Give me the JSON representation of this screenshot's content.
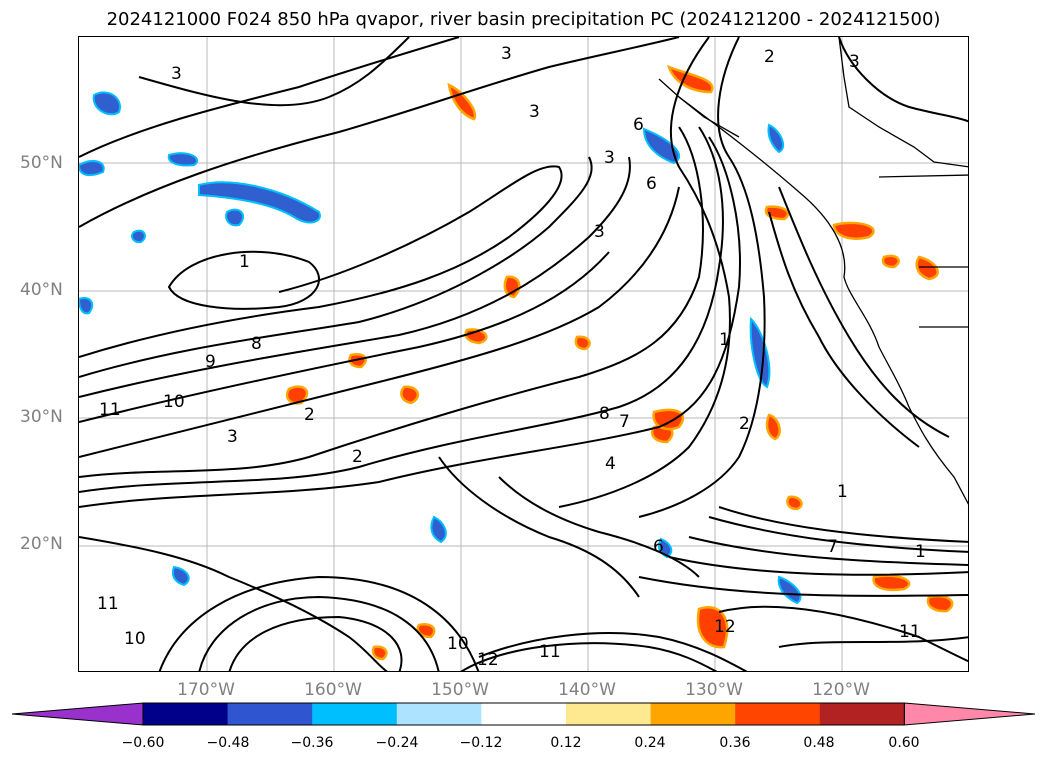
{
  "title": "2024121000 F024 850 hPa qvapor, river basin precipitation PC (2024121200 - 2024121500)",
  "map": {
    "lat_labels": [
      "50°N",
      "40°N",
      "30°N",
      "20°N"
    ],
    "lon_labels": [
      "170°W",
      "160°W",
      "150°W",
      "140°W",
      "130°W",
      "120°W"
    ],
    "contour_labels": [
      "3",
      "3",
      "3",
      "2",
      "3",
      "6",
      "3",
      "6",
      "3",
      "1",
      "1",
      "8",
      "9",
      "10",
      "11",
      "2",
      "3",
      "2",
      "4",
      "7",
      "8",
      "6",
      "1",
      "2",
      "1",
      "7",
      "11",
      "12",
      "11",
      "10",
      "12",
      "10",
      "11"
    ],
    "colors": {
      "negative_fill": "#3060d0",
      "negative_light": "#00bfff",
      "positive_fill": "#ff4000",
      "positive_light": "#ffa500",
      "contour": "#000000",
      "grid": "#b0b0b0"
    }
  },
  "colorbar": {
    "colors": [
      "#9932cc",
      "#00008b",
      "#3055d0",
      "#00bfff",
      "#aee3ff",
      "#ffffff",
      "#ffe990",
      "#ffa500",
      "#ff4500",
      "#b22222",
      "#ff88aa"
    ],
    "ticks": [
      "−0.60",
      "−0.48",
      "−0.36",
      "−0.24",
      "−0.12",
      "0.12",
      "0.24",
      "0.36",
      "0.48",
      "0.60"
    ]
  }
}
